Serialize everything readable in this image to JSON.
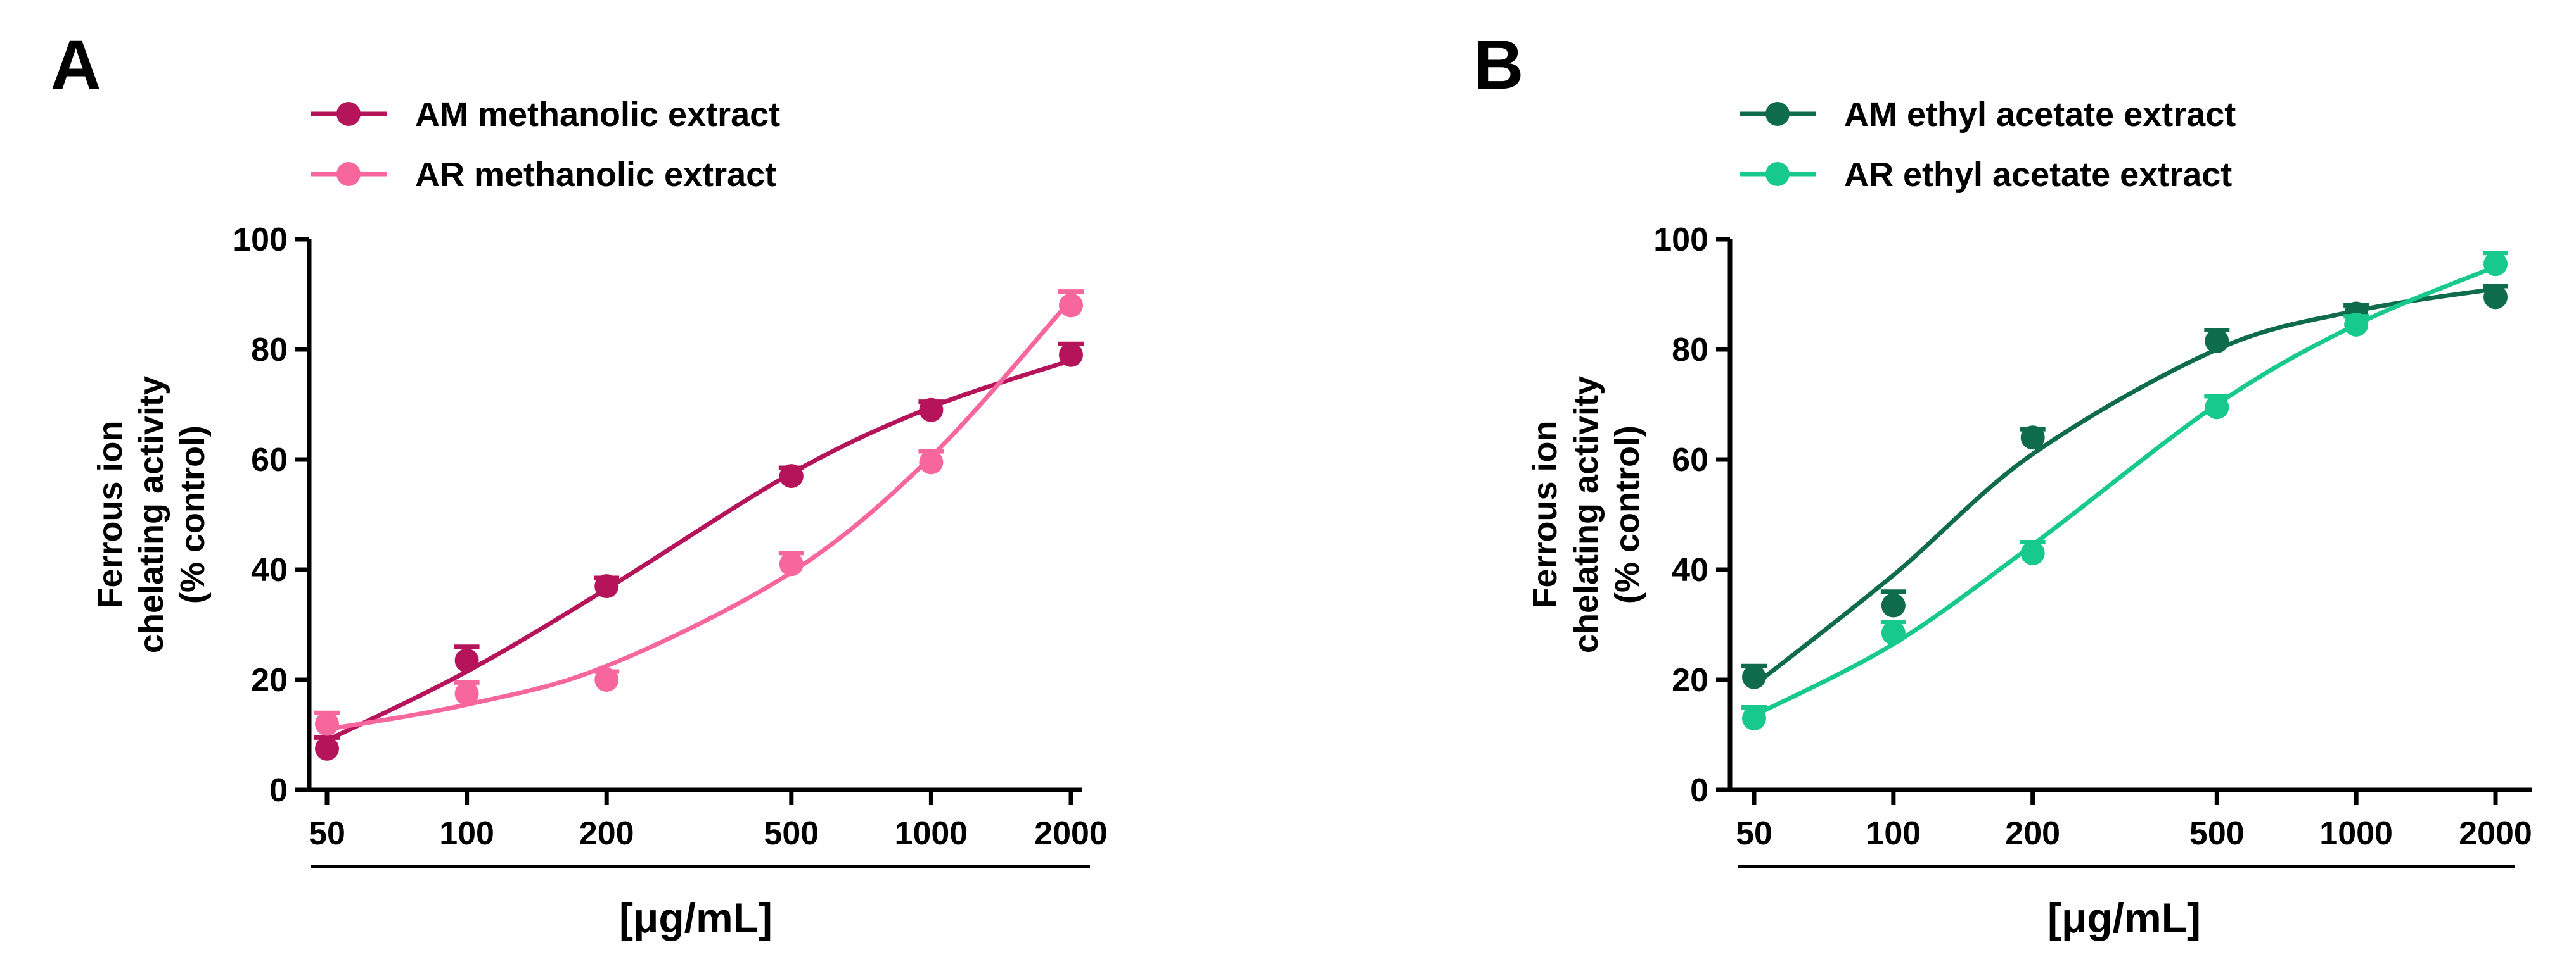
{
  "chart_data": [
    {
      "type": "line",
      "panel_label": "A",
      "xscale": "log",
      "x": [
        50,
        100,
        200,
        500,
        1000,
        2000
      ],
      "x_tick_labels": [
        "50",
        "100",
        "200",
        "500",
        "1000",
        "2000"
      ],
      "xlabel": "[μg/mL]",
      "ylabel_lines": [
        "Ferrous ion",
        "chelating activity",
        "(% control)"
      ],
      "ylim": [
        0,
        100
      ],
      "y_ticks": [
        0,
        20,
        40,
        60,
        80,
        100
      ],
      "legend_position": "top-left",
      "grid": false,
      "series": [
        {
          "name": "AM methanolic extract",
          "color": "#b5135a",
          "values": [
            7.5,
            23.5,
            37,
            57,
            69,
            79
          ],
          "errors": [
            2,
            2.5,
            1.5,
            1.5,
            1.5,
            2
          ],
          "fit": [
            9,
            21.5,
            36.5,
            57.5,
            69.5,
            78
          ]
        },
        {
          "name": "AR methanolic extract",
          "color": "#f7669c",
          "values": [
            12,
            17.5,
            20,
            41,
            59.5,
            88
          ],
          "errors": [
            2,
            2,
            1.5,
            2,
            2,
            2.5
          ],
          "fit": [
            11,
            15.5,
            22.5,
            39.5,
            60.5,
            89
          ]
        }
      ]
    },
    {
      "type": "line",
      "panel_label": "B",
      "xscale": "log",
      "x": [
        50,
        100,
        200,
        500,
        1000,
        2000
      ],
      "x_tick_labels": [
        "50",
        "100",
        "200",
        "500",
        "1000",
        "2000"
      ],
      "xlabel": "[μg/mL]",
      "ylabel_lines": [
        "Ferrous ion",
        "chelating activity",
        "(% control)"
      ],
      "ylim": [
        0,
        100
      ],
      "y_ticks": [
        0,
        20,
        40,
        60,
        80,
        100
      ],
      "legend_position": "top-left",
      "grid": false,
      "series": [
        {
          "name": "AM ethyl acetate extract",
          "color": "#0e6b4b",
          "values": [
            20.5,
            33.5,
            64,
            81.5,
            86.5,
            89.5
          ],
          "errors": [
            2,
            2.5,
            1.5,
            2,
            1.5,
            2
          ],
          "fit": [
            19,
            39,
            61,
            80,
            87,
            91
          ]
        },
        {
          "name": "AR ethyl acetate extract",
          "color": "#17c98c",
          "values": [
            13,
            28.5,
            43,
            69.5,
            84.5,
            95.5
          ],
          "errors": [
            2,
            2,
            2,
            2,
            1.5,
            2
          ],
          "fit": [
            13.5,
            26.5,
            44.5,
            70,
            84.5,
            95
          ]
        }
      ]
    }
  ]
}
